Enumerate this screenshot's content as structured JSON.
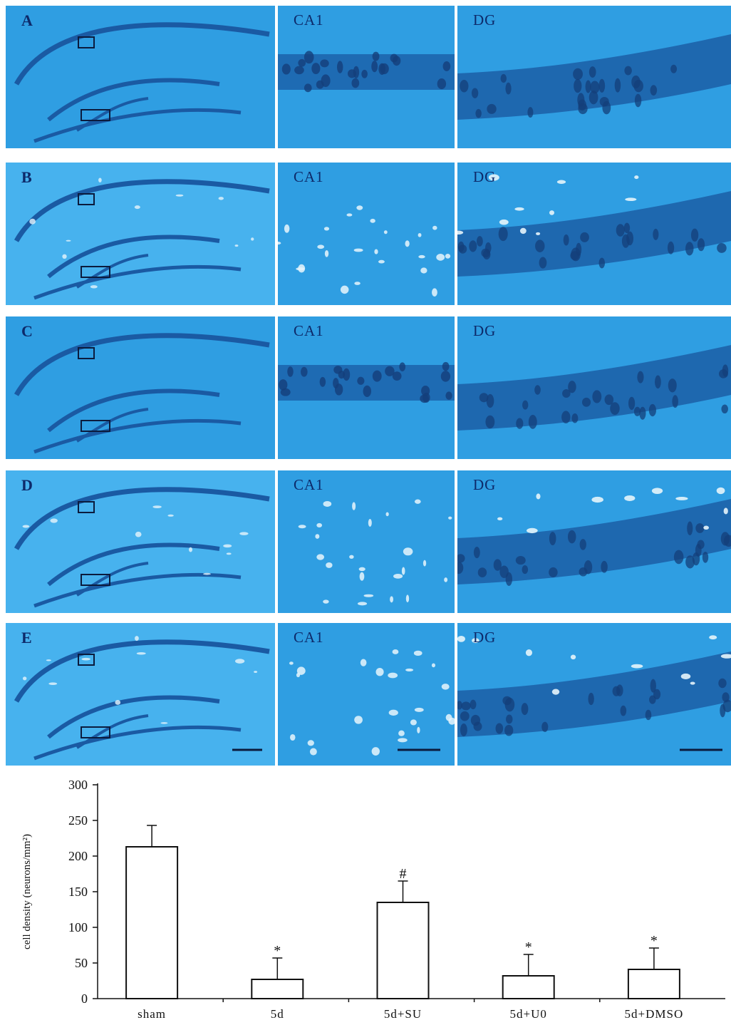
{
  "colors": {
    "tissue": "#2f9ee2",
    "tissue_light": "#47b2ee",
    "tissue_pale": "#7cc8f2",
    "cell_layer": "#1a5aa3",
    "lesion": "#e6f4fb",
    "label": "#0d2a6a",
    "figure_bg": "#ffffff"
  },
  "panels": [
    {
      "label": "A",
      "ca1_label": "CA1",
      "dg_label": "DG",
      "lesioned": false
    },
    {
      "label": "B",
      "ca1_label": "CA1",
      "dg_label": "DG",
      "lesioned": true
    },
    {
      "label": "C",
      "ca1_label": "CA1",
      "dg_label": "DG",
      "lesioned": false
    },
    {
      "label": "D",
      "ca1_label": "CA1",
      "dg_label": "DG",
      "lesioned": true
    },
    {
      "label": "E",
      "ca1_label": "CA1",
      "dg_label": "DG",
      "lesioned": true
    }
  ],
  "chart_data": {
    "type": "bar",
    "categories": [
      "sham",
      "5d",
      "5d+SU",
      "5d+U0",
      "5d+DMSO"
    ],
    "values": [
      213,
      27,
      135,
      32,
      41
    ],
    "errors": [
      30,
      30,
      30,
      30,
      30
    ],
    "annotations": [
      "",
      "*",
      "#",
      "*",
      "*"
    ],
    "ylabel": "cell density (neurons/mm²)",
    "xlabel": "",
    "ylim": [
      0,
      300
    ],
    "yticks": [
      0,
      50,
      100,
      150,
      200,
      250,
      300
    ],
    "grid": false,
    "bar_fill": "#ffffff",
    "bar_stroke": "#111111"
  }
}
